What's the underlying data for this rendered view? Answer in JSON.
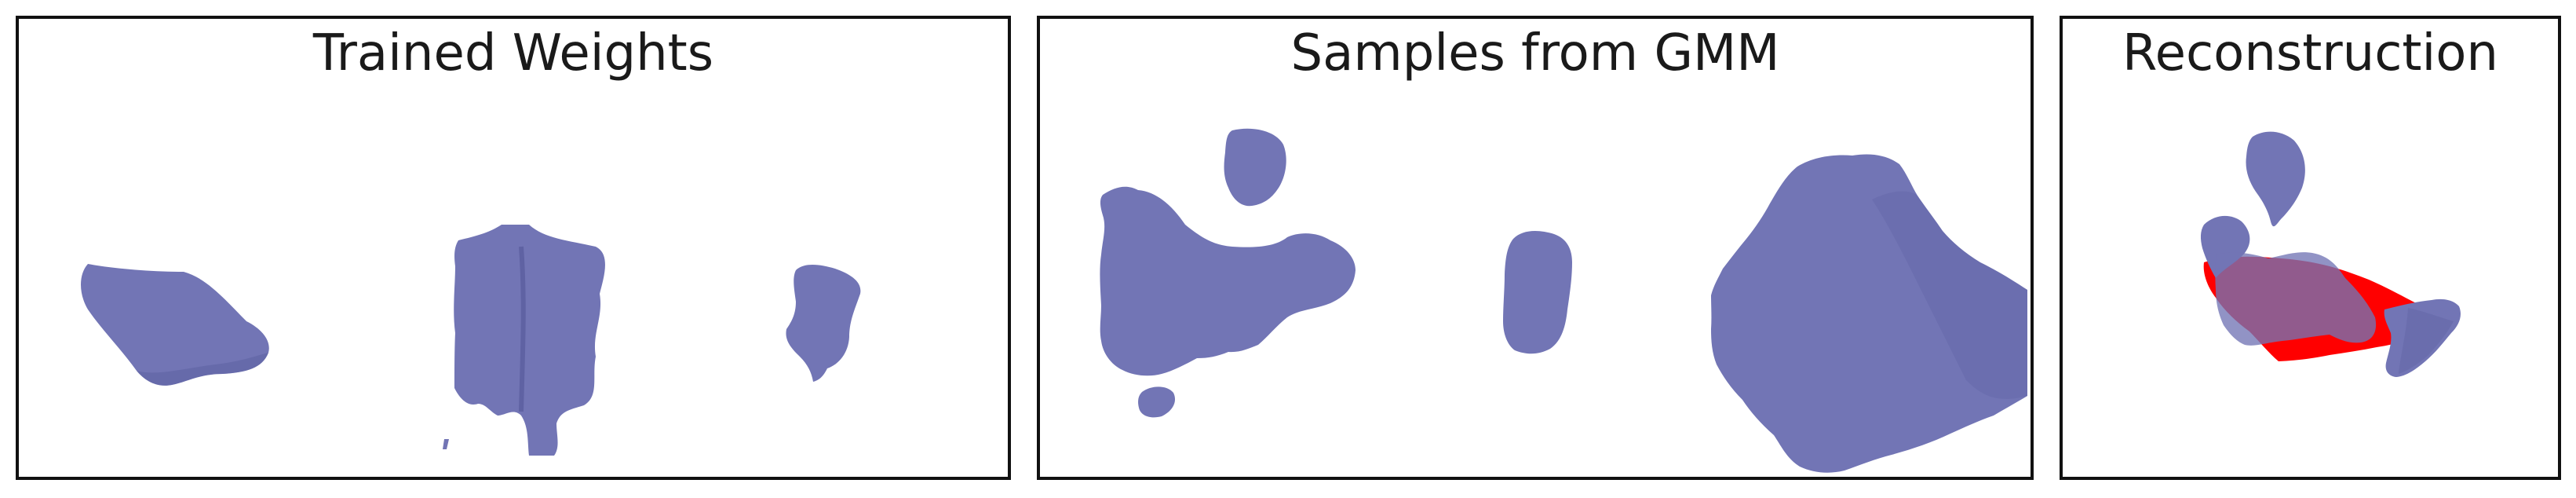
{
  "panels": [
    {
      "title": "Trained Weights"
    },
    {
      "title": "Samples from GMM"
    },
    {
      "title": "Reconstruction"
    }
  ],
  "colors": {
    "blob_fill": "#7275b5",
    "blob_shade": "#5f62a3",
    "target_red": "#ff0000",
    "frame": "#111111",
    "background": "#ffffff"
  }
}
